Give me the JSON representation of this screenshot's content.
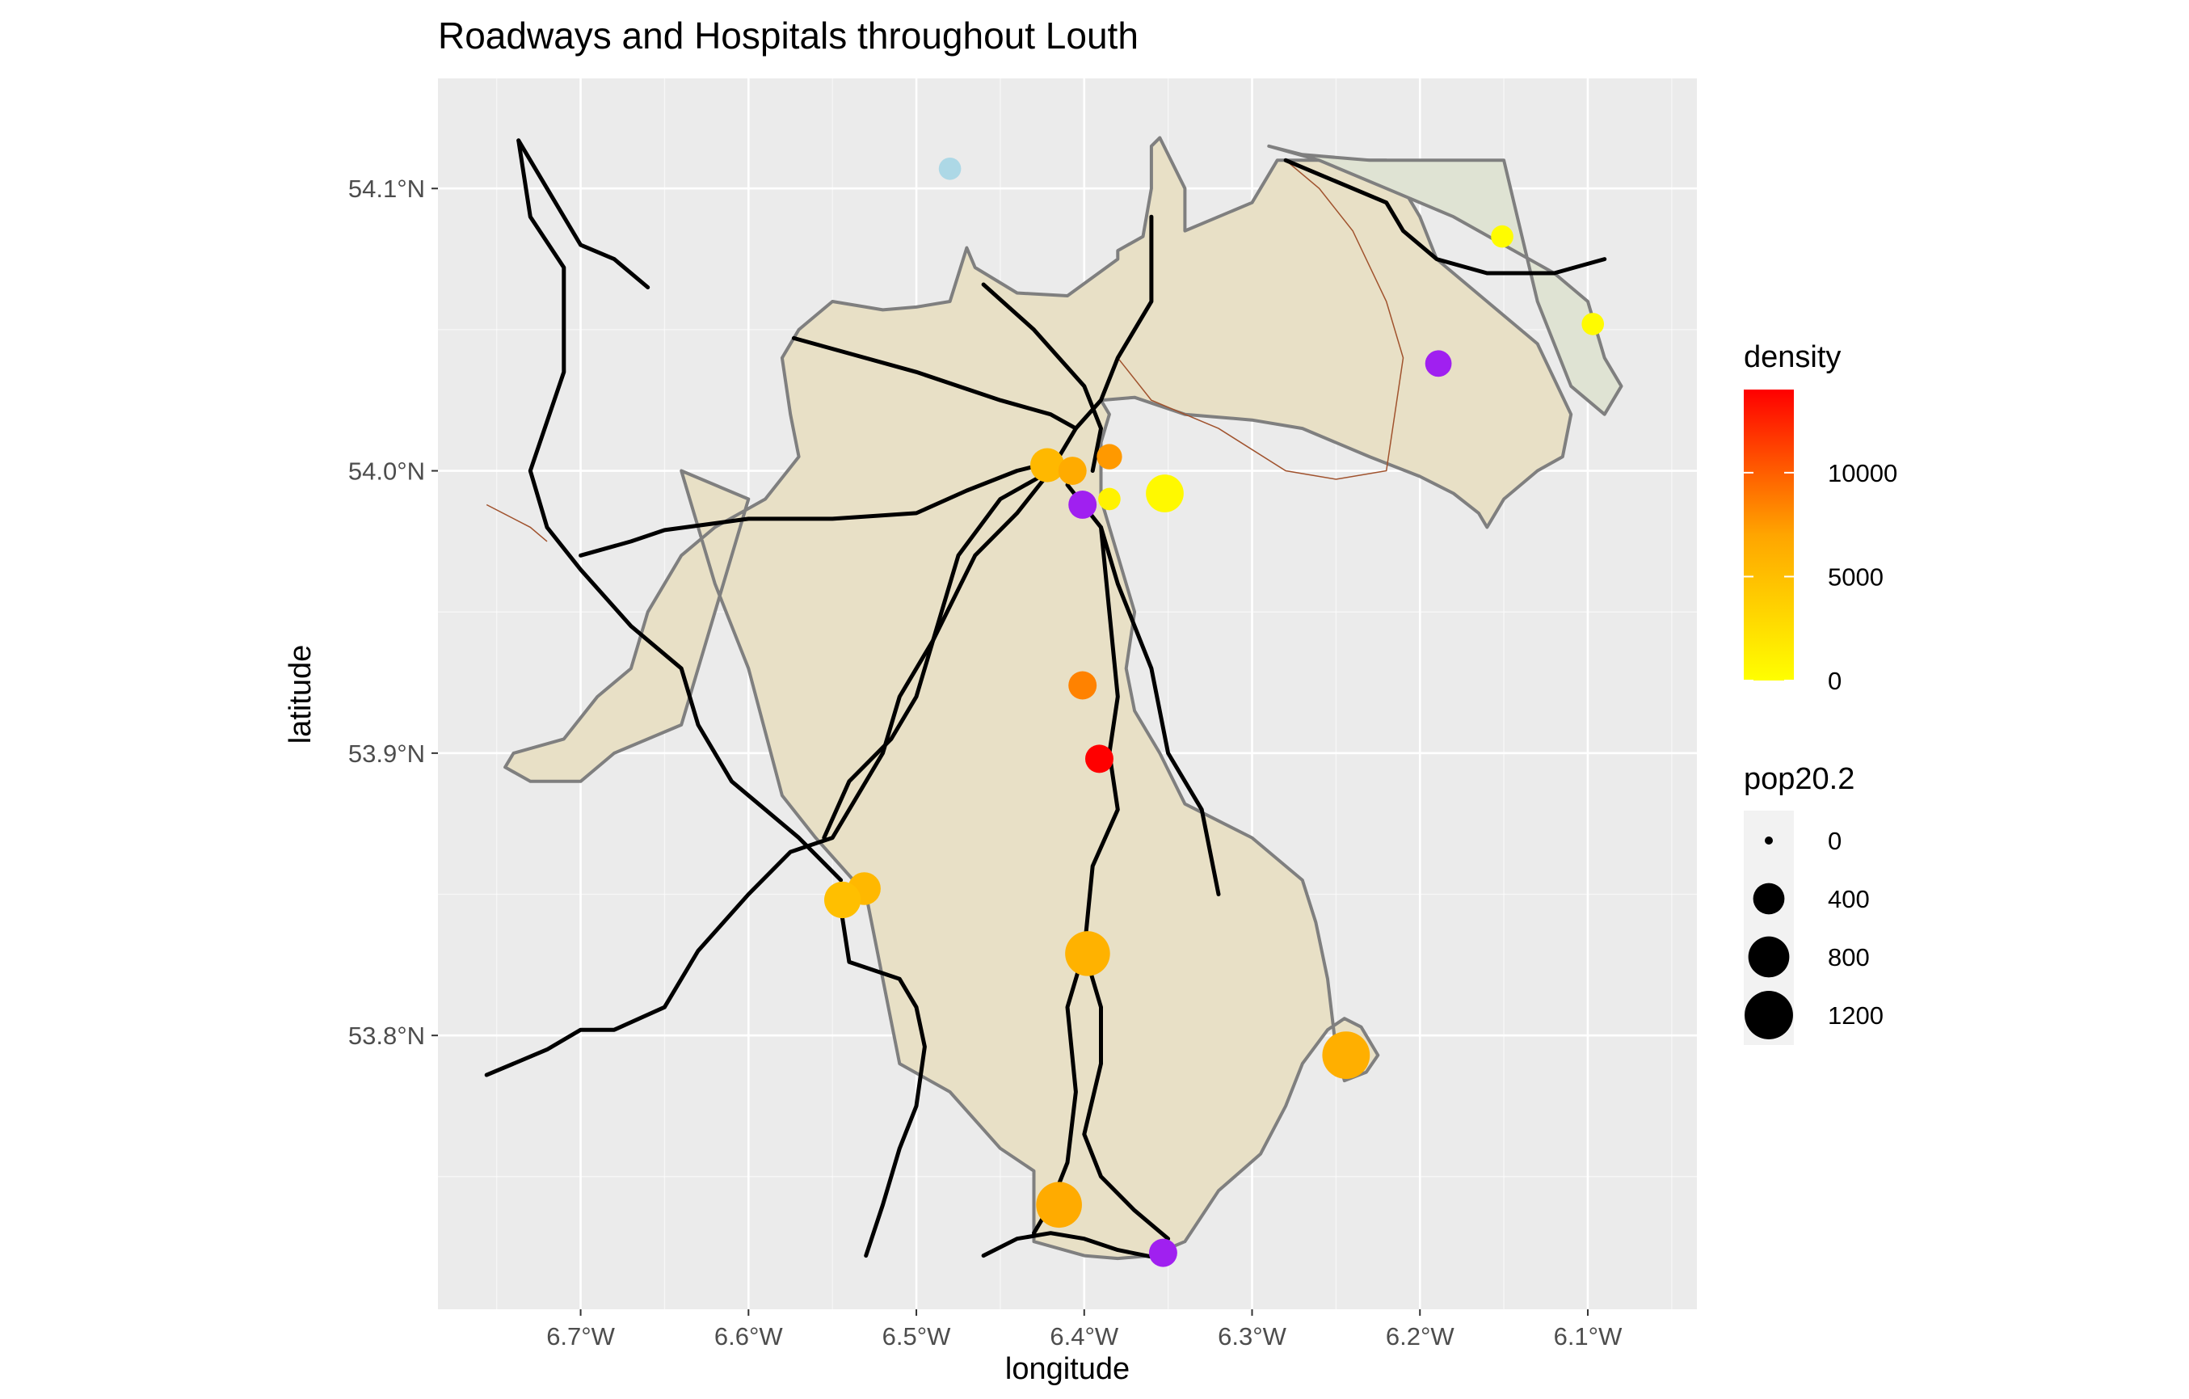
{
  "title": "Roadways and Hospitals throughout Louth",
  "x_axis": {
    "label": "longitude",
    "ticks": [
      "6.7°W",
      "6.6°W",
      "6.5°W",
      "6.4°W",
      "6.3°W",
      "6.2°W",
      "6.1°W"
    ],
    "tick_values": [
      -6.7,
      -6.6,
      -6.5,
      -6.4,
      -6.3,
      -6.2,
      -6.1
    ],
    "range": [
      -6.785,
      -6.035
    ]
  },
  "y_axis": {
    "label": "latitude",
    "ticks": [
      "54.1°N",
      "54.0°N",
      "53.9°N",
      "53.8°N"
    ],
    "tick_values": [
      54.1,
      54.0,
      53.9,
      53.8
    ],
    "range": [
      53.703,
      54.139
    ]
  },
  "colors": {
    "panel_background": "#ebebeb",
    "grid": "#ffffff",
    "county_fill": "#e8e0c6",
    "county_outline": "#7f7f7f",
    "peninsula_fill": "#dfe3d3",
    "road": "#000000",
    "boundary_thin": "#a0522d",
    "density_low": "#ffff00",
    "density_mid": "#ffa500",
    "density_high": "#ff0000",
    "purple_points": "#a020f0",
    "light_blue_point": "#add8e6"
  },
  "legend": {
    "density": {
      "title": "density",
      "breaks": [
        "10000",
        "5000",
        "0"
      ],
      "break_values": [
        10000,
        5000,
        0
      ],
      "range": [
        0,
        14000
      ]
    },
    "size": {
      "title": "pop20.2",
      "breaks": [
        "0",
        "400",
        "800",
        "1200"
      ],
      "break_values": [
        0,
        400,
        800,
        1200
      ]
    }
  },
  "map_data": {
    "county_outline": [
      [
        -6.64,
        54.0
      ],
      [
        -6.62,
        53.96
      ],
      [
        -6.6,
        53.93
      ],
      [
        -6.58,
        53.885
      ],
      [
        -6.56,
        53.87
      ],
      [
        -6.53,
        53.85
      ],
      [
        -6.52,
        53.82
      ],
      [
        -6.51,
        53.79
      ],
      [
        -6.48,
        53.78
      ],
      [
        -6.45,
        53.76
      ],
      [
        -6.43,
        53.752
      ],
      [
        -6.43,
        53.727
      ],
      [
        -6.4,
        53.722
      ],
      [
        -6.38,
        53.721
      ],
      [
        -6.36,
        53.722
      ],
      [
        -6.34,
        53.727
      ],
      [
        -6.32,
        53.745
      ],
      [
        -6.295,
        53.758
      ],
      [
        -6.28,
        53.775
      ],
      [
        -6.27,
        53.79
      ],
      [
        -6.255,
        53.802
      ],
      [
        -6.245,
        53.806
      ],
      [
        -6.235,
        53.803
      ],
      [
        -6.23,
        53.798
      ],
      [
        -6.225,
        53.793
      ],
      [
        -6.232,
        53.787
      ],
      [
        -6.245,
        53.784
      ],
      [
        -6.25,
        53.795
      ],
      [
        -6.255,
        53.82
      ],
      [
        -6.262,
        53.84
      ],
      [
        -6.27,
        53.855
      ],
      [
        -6.28,
        53.86
      ],
      [
        -6.3,
        53.87
      ],
      [
        -6.32,
        53.876
      ],
      [
        -6.34,
        53.882
      ],
      [
        -6.355,
        53.9
      ],
      [
        -6.37,
        53.915
      ],
      [
        -6.375,
        53.93
      ],
      [
        -6.37,
        53.95
      ],
      [
        -6.38,
        53.97
      ],
      [
        -6.39,
        53.99
      ],
      [
        -6.39,
        54.01
      ],
      [
        -6.385,
        54.02
      ],
      [
        -6.39,
        54.025
      ],
      [
        -6.37,
        54.026
      ],
      [
        -6.34,
        54.02
      ],
      [
        -6.3,
        54.018
      ],
      [
        -6.27,
        54.015
      ],
      [
        -6.23,
        54.005
      ],
      [
        -6.2,
        53.998
      ],
      [
        -6.18,
        53.992
      ],
      [
        -6.165,
        53.985
      ],
      [
        -6.16,
        53.98
      ],
      [
        -6.15,
        53.99
      ],
      [
        -6.13,
        54.0
      ],
      [
        -6.115,
        54.005
      ],
      [
        -6.11,
        54.02
      ],
      [
        -6.13,
        54.045
      ],
      [
        -6.16,
        54.06
      ],
      [
        -6.19,
        54.075
      ],
      [
        -6.2,
        54.09
      ],
      [
        -6.22,
        54.11
      ],
      [
        -6.26,
        54.11
      ],
      [
        -6.285,
        54.11
      ],
      [
        -6.3,
        54.095
      ],
      [
        -6.34,
        54.085
      ],
      [
        -6.34,
        54.1
      ],
      [
        -6.355,
        54.118
      ],
      [
        -6.36,
        54.115
      ],
      [
        -6.36,
        54.1
      ],
      [
        -6.365,
        54.083
      ],
      [
        -6.38,
        54.078
      ],
      [
        -6.38,
        54.075
      ],
      [
        -6.41,
        54.062
      ],
      [
        -6.44,
        54.063
      ],
      [
        -6.465,
        54.072
      ],
      [
        -6.47,
        54.079
      ],
      [
        -6.48,
        54.06
      ],
      [
        -6.5,
        54.058
      ],
      [
        -6.52,
        54.057
      ],
      [
        -6.53,
        54.058
      ],
      [
        -6.55,
        54.06
      ],
      [
        -6.57,
        54.05
      ],
      [
        -6.58,
        54.04
      ],
      [
        -6.575,
        54.02
      ],
      [
        -6.57,
        54.005
      ],
      [
        -6.59,
        53.99
      ],
      [
        -6.62,
        53.98
      ],
      [
        -6.64,
        53.97
      ],
      [
        -6.66,
        53.95
      ],
      [
        -6.67,
        53.93
      ],
      [
        -6.69,
        53.92
      ],
      [
        -6.71,
        53.905
      ],
      [
        -6.74,
        53.9
      ],
      [
        -6.745,
        53.895
      ],
      [
        -6.73,
        53.89
      ],
      [
        -6.7,
        53.89
      ],
      [
        -6.68,
        53.9
      ],
      [
        -6.64,
        53.91
      ],
      [
        -6.62,
        53.95
      ],
      [
        -6.6,
        53.99
      ],
      [
        -6.64,
        54.0
      ]
    ],
    "peninsula": [
      [
        -6.29,
        54.115
      ],
      [
        -6.26,
        54.11
      ],
      [
        -6.22,
        54.1
      ],
      [
        -6.18,
        54.09
      ],
      [
        -6.15,
        54.08
      ],
      [
        -6.12,
        54.07
      ],
      [
        -6.1,
        54.06
      ],
      [
        -6.09,
        54.04
      ],
      [
        -6.08,
        54.03
      ],
      [
        -6.09,
        54.02
      ],
      [
        -6.11,
        54.03
      ],
      [
        -6.13,
        54.06
      ],
      [
        -6.15,
        54.11
      ],
      [
        -6.23,
        54.11
      ],
      [
        -6.27,
        54.112
      ],
      [
        -6.29,
        54.115
      ]
    ],
    "roads": [
      [
        [
          -6.737,
          54.117
        ],
        [
          -6.72,
          54.1
        ],
        [
          -6.7,
          54.08
        ],
        [
          -6.68,
          54.075
        ],
        [
          -6.66,
          54.065
        ]
      ],
      [
        [
          -6.737,
          54.117
        ],
        [
          -6.73,
          54.09
        ],
        [
          -6.71,
          54.072
        ],
        [
          -6.71,
          54.05
        ],
        [
          -6.71,
          54.035
        ],
        [
          -6.73,
          54.0
        ],
        [
          -6.72,
          53.98
        ],
        [
          -6.7,
          53.965
        ],
        [
          -6.67,
          53.945
        ],
        [
          -6.64,
          53.93
        ],
        [
          -6.63,
          53.91
        ],
        [
          -6.61,
          53.89
        ],
        [
          -6.59,
          53.88
        ],
        [
          -6.57,
          53.87
        ],
        [
          -6.545,
          53.855
        ]
      ],
      [
        [
          -6.546,
          53.849
        ],
        [
          -6.54,
          53.826
        ],
        [
          -6.51,
          53.82
        ],
        [
          -6.5,
          53.81
        ],
        [
          -6.495,
          53.796
        ],
        [
          -6.5,
          53.775
        ],
        [
          -6.51,
          53.76
        ],
        [
          -6.52,
          53.74
        ],
        [
          -6.53,
          53.722
        ]
      ],
      [
        [
          -6.756,
          53.786
        ],
        [
          -6.72,
          53.795
        ],
        [
          -6.7,
          53.802
        ],
        [
          -6.68,
          53.802
        ],
        [
          -6.65,
          53.81
        ],
        [
          -6.63,
          53.83
        ],
        [
          -6.6,
          53.85
        ],
        [
          -6.575,
          53.865
        ],
        [
          -6.55,
          53.87
        ],
        [
          -6.52,
          53.9
        ],
        [
          -6.51,
          53.92
        ],
        [
          -6.49,
          53.94
        ],
        [
          -6.475,
          53.97
        ],
        [
          -6.45,
          53.99
        ],
        [
          -6.42,
          54.0
        ],
        [
          -6.405,
          54.015
        ],
        [
          -6.39,
          54.025
        ],
        [
          -6.38,
          54.04
        ],
        [
          -6.36,
          54.06
        ],
        [
          -6.36,
          54.09
        ]
      ],
      [
        [
          -6.7,
          53.97
        ],
        [
          -6.67,
          53.975
        ],
        [
          -6.65,
          53.979
        ],
        [
          -6.6,
          53.983
        ],
        [
          -6.55,
          53.983
        ],
        [
          -6.5,
          53.985
        ],
        [
          -6.47,
          53.993
        ],
        [
          -6.44,
          54.0
        ],
        [
          -6.42,
          54.003
        ]
      ],
      [
        [
          -6.573,
          54.047
        ],
        [
          -6.5,
          54.035
        ],
        [
          -6.45,
          54.025
        ],
        [
          -6.42,
          54.02
        ],
        [
          -6.405,
          54.015
        ]
      ],
      [
        [
          -6.46,
          54.066
        ],
        [
          -6.43,
          54.05
        ],
        [
          -6.4,
          54.03
        ],
        [
          -6.39,
          54.015
        ],
        [
          -6.395,
          54.0
        ]
      ],
      [
        [
          -6.555,
          53.87
        ],
        [
          -6.54,
          53.89
        ],
        [
          -6.515,
          53.905
        ],
        [
          -6.5,
          53.92
        ],
        [
          -6.49,
          53.94
        ],
        [
          -6.465,
          53.97
        ],
        [
          -6.44,
          53.985
        ],
        [
          -6.42,
          54.0
        ]
      ],
      [
        [
          -6.41,
          53.995
        ],
        [
          -6.39,
          53.98
        ],
        [
          -6.385,
          53.95
        ],
        [
          -6.38,
          53.92
        ],
        [
          -6.385,
          53.9
        ],
        [
          -6.38,
          53.88
        ],
        [
          -6.395,
          53.86
        ],
        [
          -6.4,
          53.83
        ],
        [
          -6.39,
          53.81
        ],
        [
          -6.39,
          53.79
        ],
        [
          -6.4,
          53.765
        ],
        [
          -6.39,
          53.75
        ],
        [
          -6.37,
          53.738
        ],
        [
          -6.35,
          53.728
        ]
      ],
      [
        [
          -6.39,
          53.98
        ],
        [
          -6.38,
          53.96
        ],
        [
          -6.36,
          53.93
        ],
        [
          -6.35,
          53.9
        ],
        [
          -6.33,
          53.88
        ],
        [
          -6.32,
          53.85
        ]
      ],
      [
        [
          -6.4,
          53.83
        ],
        [
          -6.41,
          53.81
        ],
        [
          -6.405,
          53.78
        ],
        [
          -6.41,
          53.755
        ],
        [
          -6.42,
          53.74
        ],
        [
          -6.43,
          53.73
        ]
      ],
      [
        [
          -6.46,
          53.722
        ],
        [
          -6.44,
          53.728
        ],
        [
          -6.42,
          53.73
        ],
        [
          -6.4,
          53.728
        ],
        [
          -6.38,
          53.724
        ],
        [
          -6.355,
          53.721
        ]
      ],
      [
        [
          -6.28,
          54.11
        ],
        [
          -6.26,
          54.105
        ],
        [
          -6.24,
          54.1
        ],
        [
          -6.22,
          54.095
        ],
        [
          -6.21,
          54.085
        ],
        [
          -6.19,
          54.075
        ],
        [
          -6.16,
          54.07
        ],
        [
          -6.12,
          54.07
        ],
        [
          -6.09,
          54.075
        ]
      ]
    ],
    "thin_boundaries": [
      [
        [
          -6.28,
          54.11
        ],
        [
          -6.26,
          54.1
        ],
        [
          -6.24,
          54.085
        ],
        [
          -6.22,
          54.06
        ],
        [
          -6.21,
          54.04
        ],
        [
          -6.215,
          54.02
        ],
        [
          -6.22,
          54.0
        ],
        [
          -6.25,
          53.997
        ],
        [
          -6.28,
          54.0
        ],
        [
          -6.32,
          54.015
        ],
        [
          -6.36,
          54.025
        ],
        [
          -6.38,
          54.04
        ]
      ],
      [
        [
          -6.756,
          53.988
        ],
        [
          -6.73,
          53.98
        ],
        [
          -6.72,
          53.975
        ]
      ]
    ],
    "points": [
      {
        "lon": -6.48,
        "lat": 54.107,
        "density": null,
        "pop": 150
      },
      {
        "lon": -6.151,
        "lat": 54.083,
        "density": 200,
        "pop": 150
      },
      {
        "lon": -6.097,
        "lat": 54.052,
        "density": 300,
        "pop": 150
      },
      {
        "lon": -6.189,
        "lat": 54.038,
        "density": null,
        "pop": 250
      },
      {
        "lon": -6.422,
        "lat": 54.002,
        "density": 5500,
        "pop": 500
      },
      {
        "lon": -6.407,
        "lat": 54.0,
        "density": 6500,
        "pop": 300
      },
      {
        "lon": -6.385,
        "lat": 54.005,
        "density": 7500,
        "pop": 220
      },
      {
        "lon": -6.385,
        "lat": 53.99,
        "density": 1000,
        "pop": 150
      },
      {
        "lon": -6.401,
        "lat": 53.988,
        "density": null,
        "pop": 300
      },
      {
        "lon": -6.352,
        "lat": 53.992,
        "density": 500,
        "pop": 650
      },
      {
        "lon": -6.401,
        "lat": 53.924,
        "density": 8500,
        "pop": 300
      },
      {
        "lon": -6.391,
        "lat": 53.898,
        "density": 14000,
        "pop": 300
      },
      {
        "lon": -6.531,
        "lat": 53.852,
        "density": 5500,
        "pop": 450
      },
      {
        "lon": -6.544,
        "lat": 53.848,
        "density": 5000,
        "pop": 600
      },
      {
        "lon": -6.398,
        "lat": 53.829,
        "density": 6000,
        "pop": 1000
      },
      {
        "lon": -6.244,
        "lat": 53.793,
        "density": 6200,
        "pop": 1150
      },
      {
        "lon": -6.415,
        "lat": 53.74,
        "density": 6500,
        "pop": 1050
      },
      {
        "lon": -6.353,
        "lat": 53.723,
        "density": null,
        "pop": 300
      }
    ]
  }
}
